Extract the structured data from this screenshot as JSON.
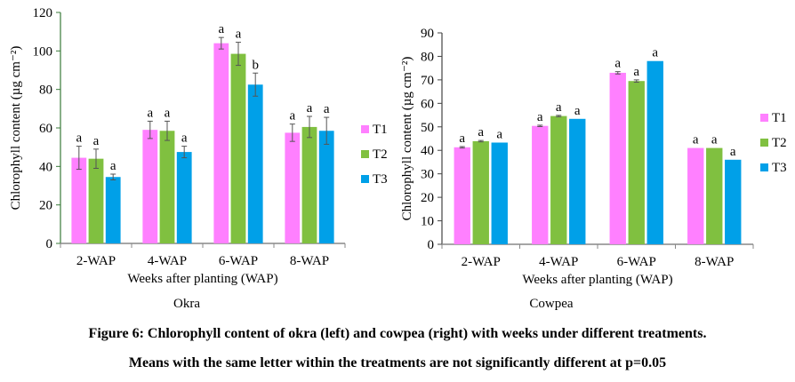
{
  "figure": {
    "caption_line1": "Figure 6: Chlorophyll content of okra (left) and cowpea (right) with weeks under different treatments.",
    "caption_line2": "Means with the same letter within the treatments are not significantly different at p=0.05"
  },
  "colors": {
    "T1": "#ff80ff",
    "T2": "#80c040",
    "T3": "#00a0e8"
  },
  "chart_data": [
    {
      "type": "bar",
      "title": "Okra",
      "xlabel": "Weeks after planting (WAP)",
      "ylabel": "Chlorophyll content (µg cm⁻²)",
      "ylim": [
        0,
        120
      ],
      "yticks": [
        0,
        20,
        40,
        60,
        80,
        100,
        120
      ],
      "categories": [
        "2-WAP",
        "4-WAP",
        "6-WAP",
        "8-WAP"
      ],
      "legend_position": "right",
      "series": [
        {
          "name": "T1",
          "values": [
            44.5,
            59,
            104,
            57.5
          ],
          "errors": [
            6,
            4.5,
            3,
            4.5
          ],
          "letters": [
            "a",
            "a",
            "a",
            "a"
          ]
        },
        {
          "name": "T2",
          "values": [
            44,
            58.5,
            98.5,
            60.5
          ],
          "errors": [
            5,
            5,
            6,
            5.5
          ],
          "letters": [
            "a",
            "a",
            "a",
            "a"
          ]
        },
        {
          "name": "T3",
          "values": [
            34.5,
            47.5,
            82.5,
            58.5
          ],
          "errors": [
            1.5,
            3,
            6,
            7
          ],
          "letters": [
            "a",
            "a",
            "b",
            "a"
          ]
        }
      ]
    },
    {
      "type": "bar",
      "title": "Cowpea",
      "xlabel": "Weeks after planting (WAP)",
      "ylabel": "Chlorophyll content (µg cm⁻²)",
      "ylim": [
        0,
        90
      ],
      "yticks": [
        0,
        10,
        20,
        30,
        40,
        50,
        60,
        70,
        80,
        90
      ],
      "categories": [
        "2-WAP",
        "4-WAP",
        "6-WAP",
        "8-WAP"
      ],
      "legend_position": "right",
      "series": [
        {
          "name": "T1",
          "values": [
            41.3,
            50.4,
            73,
            41
          ],
          "errors": [
            0.3,
            0.3,
            0.5,
            0
          ],
          "letters": [
            "a",
            "a",
            "a",
            "a"
          ]
        },
        {
          "name": "T2",
          "values": [
            43.9,
            54.6,
            69.5,
            41
          ],
          "errors": [
            0.3,
            0.3,
            0.5,
            0
          ],
          "letters": [
            "a",
            "a",
            "a",
            "a"
          ]
        },
        {
          "name": "T3",
          "values": [
            43.3,
            53.4,
            78,
            36
          ],
          "errors": [
            0,
            0,
            0,
            0
          ],
          "letters": [
            "a",
            "a",
            "a",
            "a"
          ]
        }
      ]
    }
  ]
}
